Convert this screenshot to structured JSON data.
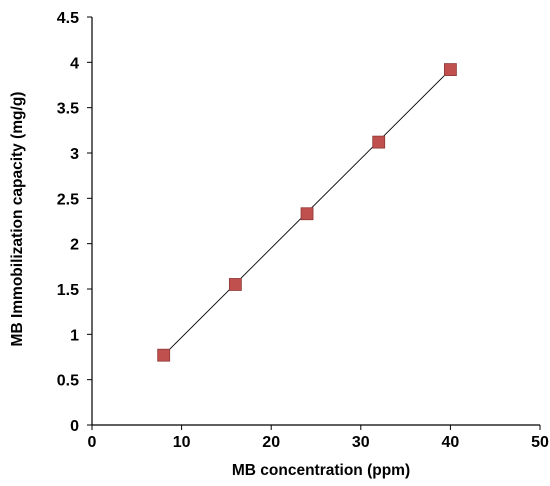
{
  "chart_data": {
    "type": "scatter",
    "xlabel": "MB concentration (ppm)",
    "ylabel": "MB Immobilization capacity (mg/g)",
    "xlim": [
      0,
      50
    ],
    "ylim": [
      0,
      4.5
    ],
    "x_ticks": [
      "0",
      "10",
      "20",
      "30",
      "40",
      "50"
    ],
    "y_ticks": [
      "0",
      "0.5",
      "1",
      "1.5",
      "2",
      "2.5",
      "3",
      "3.5",
      "4",
      "4.5"
    ],
    "grid": false,
    "legend": "none",
    "series": [
      {
        "x": [
          8,
          16,
          24,
          32,
          40
        ],
        "y": [
          0.77,
          1.55,
          2.33,
          3.12,
          3.92
        ],
        "marker": "square",
        "marker_color": "#c0504d",
        "marker_edge_color": "#8c3836"
      }
    ],
    "trendline": {
      "type": "linear",
      "color": "#000000",
      "x": [
        8,
        40
      ],
      "y": [
        0.77,
        3.92
      ]
    }
  }
}
